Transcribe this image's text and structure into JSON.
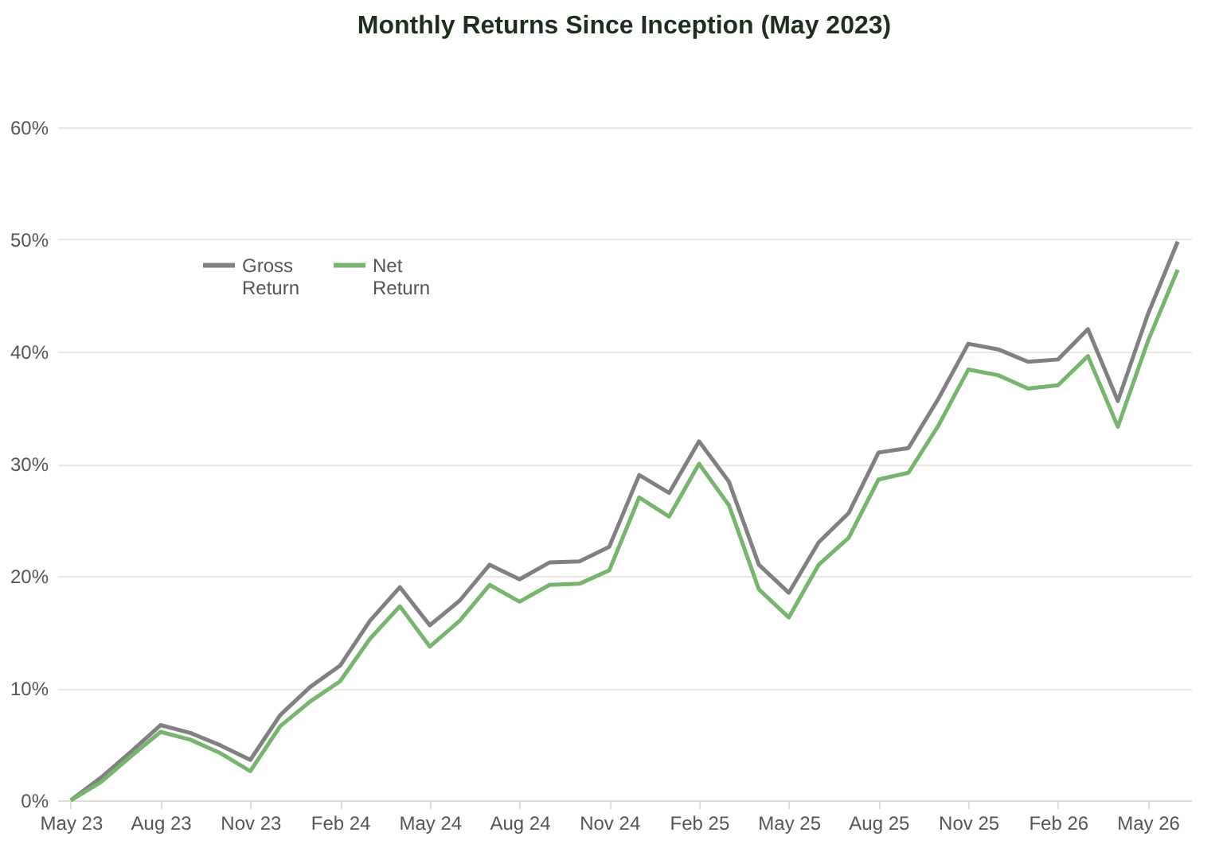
{
  "chart_data": {
    "type": "line",
    "title": "Monthly Returns Since Inception (May 2023)",
    "categories": [
      "May 23",
      null,
      null,
      "Aug 23",
      null,
      null,
      "Nov 23",
      null,
      null,
      "Feb 24",
      null,
      null,
      "May 24",
      null,
      null,
      "Aug 24",
      null,
      null,
      "Nov 24",
      null,
      null,
      "Feb 25",
      null,
      null,
      "May 25",
      null,
      null,
      "Aug 25",
      null,
      null,
      "Nov 25",
      null,
      null,
      "Feb 26",
      null,
      null,
      "May 26",
      null
    ],
    "series": [
      {
        "name": "Gross Return",
        "color": "#808080",
        "values": [
          0,
          2.0,
          4.3,
          6.7,
          6.0,
          4.9,
          3.6,
          7.6,
          10.1,
          12.0,
          16.0,
          19.0,
          15.6,
          17.8,
          21.0,
          19.7,
          21.2,
          21.3,
          22.6,
          29.0,
          27.4,
          32.0,
          28.4,
          21.0,
          18.5,
          23.0,
          25.6,
          31.0,
          31.4,
          35.8,
          40.7,
          40.2,
          39.1,
          39.3,
          42.0,
          35.6,
          43.3,
          49.8
        ]
      },
      {
        "name": "Net Return",
        "color": "#77b56f",
        "values": [
          0,
          1.6,
          3.9,
          6.1,
          5.4,
          4.2,
          2.6,
          6.6,
          8.8,
          10.6,
          14.4,
          17.3,
          13.7,
          16.0,
          19.2,
          17.7,
          19.2,
          19.3,
          20.5,
          27.0,
          25.3,
          30.0,
          26.3,
          18.8,
          16.3,
          21.0,
          23.4,
          28.6,
          29.2,
          33.4,
          38.4,
          37.9,
          36.7,
          37.0,
          39.6,
          33.3,
          40.9,
          47.3
        ]
      }
    ],
    "ylim": [
      0,
      60
    ],
    "yticks": [
      {
        "value": 0,
        "label": "0%"
      },
      {
        "value": 10,
        "label": "10%"
      },
      {
        "value": 20,
        "label": "20%"
      },
      {
        "value": 30,
        "label": "30%"
      },
      {
        "value": 40,
        "label": "40%"
      },
      {
        "value": 50,
        "label": "50%"
      },
      {
        "value": 60,
        "label": "60%"
      }
    ],
    "grid": "y",
    "legend": "top left",
    "line_style": "solid",
    "marker": "none"
  }
}
